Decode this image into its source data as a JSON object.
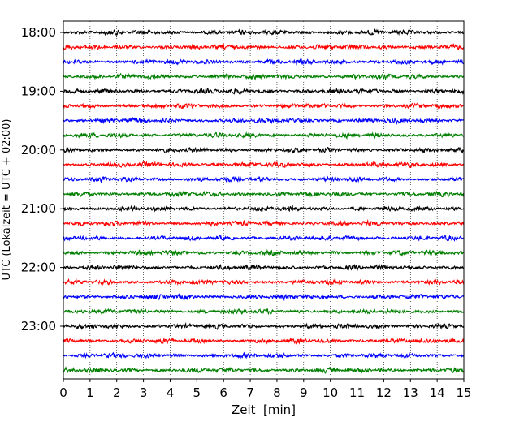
{
  "chart_data": {
    "type": "line",
    "title": "",
    "xlabel": "Zeit  [min]",
    "ylabel": "UTC (Lokalzeit = UTC + 02:00)",
    "xlim": [
      0,
      15
    ],
    "x_ticks": [
      0,
      1,
      2,
      3,
      4,
      5,
      6,
      7,
      8,
      9,
      10,
      11,
      12,
      13,
      14,
      15
    ],
    "y_ticks": [
      {
        "label": "18:00",
        "trace": 0
      },
      {
        "label": "19:00",
        "trace": 4
      },
      {
        "label": "20:00",
        "trace": 8
      },
      {
        "label": "21:00",
        "trace": 12
      },
      {
        "label": "22:00",
        "trace": 16
      },
      {
        "label": "23:00",
        "trace": 20
      }
    ],
    "vertical_grid": true,
    "grid_style": "dotted",
    "trace_minutes_each": 15,
    "start_time": "18:00",
    "traces": [
      {
        "start": "18:00",
        "color": "#000000"
      },
      {
        "start": "18:15",
        "color": "#ff0000"
      },
      {
        "start": "18:30",
        "color": "#0000ff"
      },
      {
        "start": "18:45",
        "color": "#007f00"
      },
      {
        "start": "19:00",
        "color": "#000000"
      },
      {
        "start": "19:15",
        "color": "#ff0000"
      },
      {
        "start": "19:30",
        "color": "#0000ff"
      },
      {
        "start": "19:45",
        "color": "#007f00"
      },
      {
        "start": "20:00",
        "color": "#000000"
      },
      {
        "start": "20:15",
        "color": "#ff0000"
      },
      {
        "start": "20:30",
        "color": "#0000ff"
      },
      {
        "start": "20:45",
        "color": "#007f00"
      },
      {
        "start": "21:00",
        "color": "#000000"
      },
      {
        "start": "21:15",
        "color": "#ff0000"
      },
      {
        "start": "21:30",
        "color": "#0000ff"
      },
      {
        "start": "21:45",
        "color": "#007f00"
      },
      {
        "start": "22:00",
        "color": "#000000"
      },
      {
        "start": "22:15",
        "color": "#ff0000"
      },
      {
        "start": "22:30",
        "color": "#0000ff"
      },
      {
        "start": "22:45",
        "color": "#007f00"
      },
      {
        "start": "23:00",
        "color": "#000000"
      },
      {
        "start": "23:15",
        "color": "#ff0000"
      },
      {
        "start": "23:30",
        "color": "#0000ff"
      },
      {
        "start": "23:45",
        "color": "#007f00"
      }
    ]
  }
}
